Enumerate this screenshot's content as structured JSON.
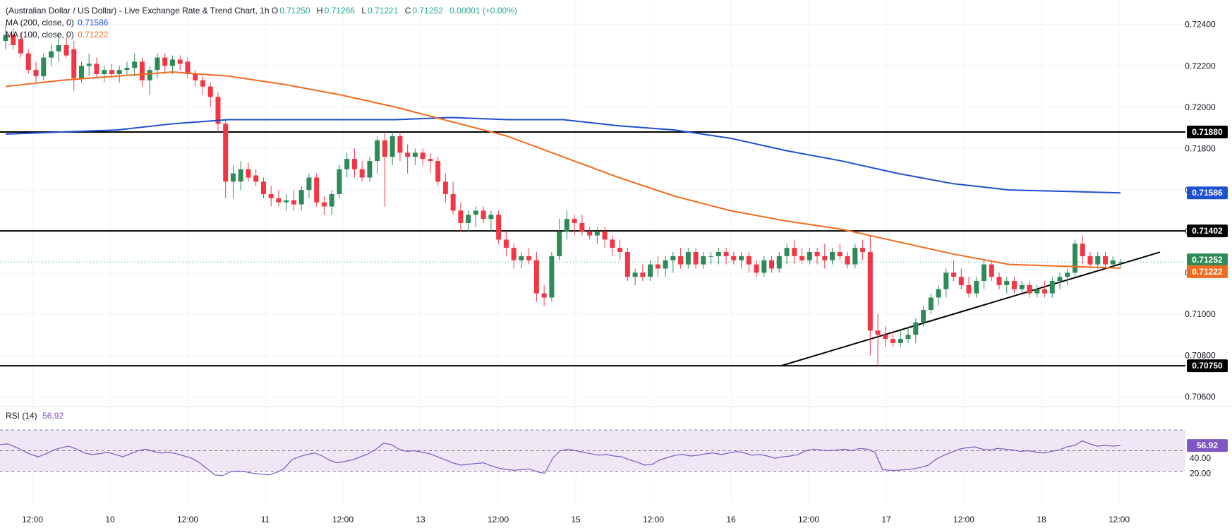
{
  "header": {
    "title": "(Australian Dollar / US Dollar) - Live Exchange Rate & Trend Chart, 1h",
    "open_label": "O",
    "open": "0.71250",
    "high_label": "H",
    "high": "0.71266",
    "low_label": "L",
    "low": "0.71221",
    "close_label": "C",
    "close": "0.71252",
    "change": "0.00001 (+0.00%)",
    "ma200_label": "MA (200, close, 0)",
    "ma200_value": "0.71586",
    "ma100_label": "MA (100, close, 0)",
    "ma100_value": "0.71222"
  },
  "rsi": {
    "label": "RSI (14)",
    "value": "56.92",
    "ticks": [
      "60.00",
      "40.00",
      "20.00"
    ]
  },
  "colors": {
    "up": "#26a69a",
    "up_body": "#2e8b57",
    "down": "#f23645",
    "ma200": "#1e4fd0",
    "ma100": "#f26b1d",
    "rsi": "#7e57c2",
    "rsi_band": "#ede7f6",
    "line": "#000000",
    "grid": "#f0f3fa"
  },
  "price_levels": [
    {
      "label": "0.71880",
      "value": 0.7188
    },
    {
      "label": "0.71402",
      "value": 0.71402
    },
    {
      "label": "0.70750",
      "value": 0.7075
    }
  ],
  "last_price_tag": "0.71252",
  "ma100_tag": "0.71222",
  "ma200_tag": "0.71586",
  "chart_data": {
    "type": "candlestick",
    "title": "(Australian Dollar / US Dollar) - Live Exchange Rate & Trend Chart, 1h",
    "yaxis": {
      "ticks": [
        "0.72400",
        "0.72200",
        "0.72000",
        "0.71800",
        "0.71600",
        "0.71400",
        "0.71200",
        "0.71000",
        "0.70800",
        "0.70600"
      ],
      "range": [
        0.7058,
        0.7245
      ]
    },
    "xaxis": {
      "ticks": [
        "12:00",
        "10",
        "12:00",
        "11",
        "12:00",
        "13",
        "12:00",
        "15",
        "12:00",
        "16",
        "12:00",
        "17",
        "12:00",
        "18",
        "12:00"
      ]
    },
    "candles_ohlc": [
      [
        0.7232,
        0.724,
        0.7228,
        0.7235
      ],
      [
        0.7235,
        0.7238,
        0.7228,
        0.723
      ],
      [
        0.7233,
        0.7236,
        0.7224,
        0.7226
      ],
      [
        0.7226,
        0.7228,
        0.7216,
        0.7218
      ],
      [
        0.7218,
        0.7222,
        0.7212,
        0.7215
      ],
      [
        0.7215,
        0.7226,
        0.7213,
        0.7224
      ],
      [
        0.7224,
        0.723,
        0.722,
        0.7227
      ],
      [
        0.7227,
        0.7235,
        0.7222,
        0.723
      ],
      [
        0.723,
        0.7234,
        0.7224,
        0.7225
      ],
      [
        0.7228,
        0.7232,
        0.7208,
        0.7214
      ],
      [
        0.7214,
        0.7222,
        0.7212,
        0.722
      ],
      [
        0.722,
        0.7226,
        0.7215,
        0.7221
      ],
      [
        0.7221,
        0.7224,
        0.7214,
        0.7216
      ],
      [
        0.7216,
        0.722,
        0.7212,
        0.7218
      ],
      [
        0.7218,
        0.7221,
        0.7214,
        0.7216
      ],
      [
        0.7216,
        0.722,
        0.7212,
        0.7218
      ],
      [
        0.7218,
        0.7222,
        0.7215,
        0.7219
      ],
      [
        0.7219,
        0.7226,
        0.7215,
        0.7222
      ],
      [
        0.7222,
        0.7224,
        0.721,
        0.7213
      ],
      [
        0.7213,
        0.722,
        0.7206,
        0.7218
      ],
      [
        0.7218,
        0.7226,
        0.7214,
        0.7224
      ],
      [
        0.7224,
        0.7226,
        0.7216,
        0.722
      ],
      [
        0.722,
        0.7225,
        0.7216,
        0.7223
      ],
      [
        0.7223,
        0.7225,
        0.7218,
        0.7221
      ],
      [
        0.7222,
        0.7224,
        0.7214,
        0.7216
      ],
      [
        0.7216,
        0.7218,
        0.721,
        0.7213
      ],
      [
        0.7213,
        0.7215,
        0.7206,
        0.721
      ],
      [
        0.721,
        0.7212,
        0.72,
        0.7205
      ],
      [
        0.7205,
        0.7207,
        0.7188,
        0.7192
      ],
      [
        0.7192,
        0.7194,
        0.7156,
        0.7164
      ],
      [
        0.7164,
        0.7172,
        0.7156,
        0.7168
      ],
      [
        0.7164,
        0.7174,
        0.716,
        0.717
      ],
      [
        0.717,
        0.7173,
        0.7164,
        0.7166
      ],
      [
        0.7167,
        0.717,
        0.7162,
        0.7164
      ],
      [
        0.7164,
        0.7166,
        0.7156,
        0.7158
      ],
      [
        0.7158,
        0.7162,
        0.7152,
        0.7156
      ],
      [
        0.7156,
        0.716,
        0.7152,
        0.7154
      ],
      [
        0.7154,
        0.7158,
        0.715,
        0.7155
      ],
      [
        0.7155,
        0.716,
        0.715,
        0.7153
      ],
      [
        0.7153,
        0.7162,
        0.715,
        0.716
      ],
      [
        0.716,
        0.7168,
        0.7156,
        0.7166
      ],
      [
        0.7166,
        0.7168,
        0.7152,
        0.7154
      ],
      [
        0.7154,
        0.7157,
        0.7148,
        0.7152
      ],
      [
        0.7152,
        0.716,
        0.7148,
        0.7158
      ],
      [
        0.7158,
        0.7172,
        0.7156,
        0.717
      ],
      [
        0.717,
        0.7178,
        0.7166,
        0.7175
      ],
      [
        0.7175,
        0.718,
        0.7166,
        0.717
      ],
      [
        0.717,
        0.7174,
        0.7164,
        0.7166
      ],
      [
        0.7166,
        0.7176,
        0.7164,
        0.7174
      ],
      [
        0.7174,
        0.7186,
        0.7168,
        0.7184
      ],
      [
        0.7184,
        0.7188,
        0.7152,
        0.7176
      ],
      [
        0.7176,
        0.7188,
        0.7172,
        0.7186
      ],
      [
        0.7186,
        0.7188,
        0.7174,
        0.7178
      ],
      [
        0.7178,
        0.7182,
        0.7168,
        0.7176
      ],
      [
        0.7176,
        0.718,
        0.7172,
        0.7178
      ],
      [
        0.7178,
        0.718,
        0.7172,
        0.7175
      ],
      [
        0.7175,
        0.7178,
        0.7168,
        0.7174
      ],
      [
        0.7174,
        0.7176,
        0.7162,
        0.7164
      ],
      [
        0.7164,
        0.7168,
        0.7154,
        0.7158
      ],
      [
        0.7158,
        0.7164,
        0.7148,
        0.715
      ],
      [
        0.715,
        0.7154,
        0.714,
        0.7144
      ],
      [
        0.7144,
        0.715,
        0.714,
        0.7148
      ],
      [
        0.7148,
        0.7152,
        0.7142,
        0.715
      ],
      [
        0.715,
        0.7152,
        0.7144,
        0.7146
      ],
      [
        0.7146,
        0.715,
        0.714,
        0.7148
      ],
      [
        0.7148,
        0.715,
        0.7134,
        0.7136
      ],
      [
        0.7136,
        0.714,
        0.7128,
        0.7132
      ],
      [
        0.7132,
        0.7134,
        0.7122,
        0.7126
      ],
      [
        0.7126,
        0.713,
        0.7122,
        0.7128
      ],
      [
        0.7128,
        0.7132,
        0.7124,
        0.7126
      ],
      [
        0.7126,
        0.713,
        0.7106,
        0.711
      ],
      [
        0.711,
        0.7114,
        0.7104,
        0.7108
      ],
      [
        0.7108,
        0.713,
        0.7106,
        0.7128
      ],
      [
        0.7128,
        0.7146,
        0.7126,
        0.714
      ],
      [
        0.714,
        0.715,
        0.7136,
        0.7146
      ],
      [
        0.7146,
        0.7148,
        0.7138,
        0.7144
      ],
      [
        0.7144,
        0.7148,
        0.7138,
        0.714
      ],
      [
        0.714,
        0.7142,
        0.7136,
        0.7138
      ],
      [
        0.7138,
        0.7142,
        0.7134,
        0.714
      ],
      [
        0.714,
        0.7142,
        0.7132,
        0.7136
      ],
      [
        0.7136,
        0.7138,
        0.7128,
        0.7132
      ],
      [
        0.7132,
        0.7136,
        0.7126,
        0.713
      ],
      [
        0.713,
        0.7132,
        0.7116,
        0.7118
      ],
      [
        0.7118,
        0.7122,
        0.7114,
        0.712
      ],
      [
        0.712,
        0.7124,
        0.7116,
        0.7118
      ],
      [
        0.7118,
        0.7126,
        0.7116,
        0.7124
      ],
      [
        0.7124,
        0.7128,
        0.7118,
        0.7122
      ],
      [
        0.7122,
        0.7128,
        0.7118,
        0.7126
      ],
      [
        0.7126,
        0.713,
        0.712,
        0.7128
      ],
      [
        0.7128,
        0.7132,
        0.7122,
        0.7124
      ],
      [
        0.7124,
        0.7132,
        0.7122,
        0.713
      ],
      [
        0.713,
        0.7132,
        0.7122,
        0.7124
      ],
      [
        0.7124,
        0.713,
        0.7122,
        0.7128
      ],
      [
        0.7128,
        0.713,
        0.7124,
        0.7128
      ],
      [
        0.7128,
        0.7132,
        0.7124,
        0.713
      ],
      [
        0.713,
        0.7132,
        0.7124,
        0.7128
      ],
      [
        0.7128,
        0.713,
        0.7124,
        0.7126
      ],
      [
        0.7126,
        0.713,
        0.7122,
        0.7128
      ],
      [
        0.7128,
        0.713,
        0.712,
        0.7124
      ],
      [
        0.7124,
        0.7126,
        0.7118,
        0.712
      ],
      [
        0.712,
        0.7128,
        0.7118,
        0.7126
      ],
      [
        0.7126,
        0.7128,
        0.712,
        0.7122
      ],
      [
        0.7122,
        0.713,
        0.712,
        0.7128
      ],
      [
        0.7128,
        0.7134,
        0.7124,
        0.7132
      ],
      [
        0.7132,
        0.7136,
        0.7124,
        0.7128
      ],
      [
        0.7128,
        0.7132,
        0.7124,
        0.7126
      ],
      [
        0.7126,
        0.7132,
        0.7124,
        0.713
      ],
      [
        0.713,
        0.7132,
        0.7124,
        0.7128
      ],
      [
        0.7128,
        0.7134,
        0.7122,
        0.7126
      ],
      [
        0.7126,
        0.7132,
        0.7124,
        0.713
      ],
      [
        0.713,
        0.7134,
        0.7126,
        0.7128
      ],
      [
        0.7128,
        0.713,
        0.7122,
        0.7124
      ],
      [
        0.7124,
        0.7134,
        0.7122,
        0.7132
      ],
      [
        0.7132,
        0.7136,
        0.7126,
        0.713
      ],
      [
        0.713,
        0.7138,
        0.708,
        0.7092
      ],
      [
        0.7092,
        0.71,
        0.7075,
        0.709
      ],
      [
        0.709,
        0.7094,
        0.7084,
        0.7088
      ],
      [
        0.7088,
        0.7092,
        0.7084,
        0.7086
      ],
      [
        0.7086,
        0.7092,
        0.7084,
        0.7088
      ],
      [
        0.7088,
        0.7094,
        0.7086,
        0.709
      ],
      [
        0.709,
        0.7098,
        0.7086,
        0.7096
      ],
      [
        0.7096,
        0.7104,
        0.7094,
        0.7102
      ],
      [
        0.7102,
        0.711,
        0.71,
        0.7108
      ],
      [
        0.7108,
        0.7114,
        0.7104,
        0.7112
      ],
      [
        0.7112,
        0.7122,
        0.7108,
        0.712
      ],
      [
        0.712,
        0.7126,
        0.7116,
        0.7118
      ],
      [
        0.7118,
        0.7122,
        0.7112,
        0.7114
      ],
      [
        0.7114,
        0.7118,
        0.7108,
        0.711
      ],
      [
        0.711,
        0.7118,
        0.7108,
        0.7116
      ],
      [
        0.7116,
        0.7126,
        0.7112,
        0.7124
      ],
      [
        0.7124,
        0.7126,
        0.7116,
        0.7118
      ],
      [
        0.7118,
        0.712,
        0.7112,
        0.7114
      ],
      [
        0.7114,
        0.7118,
        0.711,
        0.7116
      ],
      [
        0.7116,
        0.7118,
        0.711,
        0.7112
      ],
      [
        0.7112,
        0.7116,
        0.711,
        0.7114
      ],
      [
        0.7114,
        0.7116,
        0.7108,
        0.711
      ],
      [
        0.711,
        0.7114,
        0.7108,
        0.7112
      ],
      [
        0.7112,
        0.7116,
        0.7108,
        0.711
      ],
      [
        0.711,
        0.7118,
        0.7108,
        0.7116
      ],
      [
        0.7116,
        0.712,
        0.7112,
        0.7118
      ],
      [
        0.7118,
        0.7122,
        0.7114,
        0.712
      ],
      [
        0.712,
        0.7136,
        0.7118,
        0.7134
      ],
      [
        0.7134,
        0.7138,
        0.7124,
        0.7128
      ],
      [
        0.7128,
        0.713,
        0.7122,
        0.7124
      ],
      [
        0.7124,
        0.713,
        0.7122,
        0.7128
      ],
      [
        0.7128,
        0.713,
        0.7122,
        0.7124
      ],
      [
        0.7124,
        0.7128,
        0.7122,
        0.7126
      ],
      [
        0.7125,
        0.71266,
        0.71221,
        0.71252
      ]
    ],
    "ma200": {
      "name": "MA (200, close, 0)",
      "last": 0.71586,
      "values": [
        [
          0,
          0.7187
        ],
        [
          0.05,
          0.7188
        ],
        [
          0.1,
          0.7189
        ],
        [
          0.15,
          0.7192
        ],
        [
          0.2,
          0.7194
        ],
        [
          0.25,
          0.7194
        ],
        [
          0.3,
          0.7194
        ],
        [
          0.35,
          0.7194
        ],
        [
          0.4,
          0.7195
        ],
        [
          0.45,
          0.7194
        ],
        [
          0.5,
          0.7194
        ],
        [
          0.55,
          0.7191
        ],
        [
          0.6,
          0.7189
        ],
        [
          0.65,
          0.7185
        ],
        [
          0.7,
          0.7179
        ],
        [
          0.75,
          0.7174
        ],
        [
          0.8,
          0.7168
        ],
        [
          0.85,
          0.7163
        ],
        [
          0.9,
          0.716
        ],
        [
          1.0,
          0.71586
        ]
      ]
    },
    "ma100": {
      "name": "MA (100, close, 0)",
      "last": 0.71222,
      "values": [
        [
          0,
          0.721
        ],
        [
          0.05,
          0.7213
        ],
        [
          0.1,
          0.7215
        ],
        [
          0.15,
          0.7217
        ],
        [
          0.2,
          0.7215
        ],
        [
          0.25,
          0.7211
        ],
        [
          0.3,
          0.7206
        ],
        [
          0.35,
          0.72
        ],
        [
          0.4,
          0.7193
        ],
        [
          0.45,
          0.7186
        ],
        [
          0.5,
          0.7176
        ],
        [
          0.55,
          0.7166
        ],
        [
          0.6,
          0.7157
        ],
        [
          0.65,
          0.715
        ],
        [
          0.7,
          0.7145
        ],
        [
          0.75,
          0.7141
        ],
        [
          0.8,
          0.7135
        ],
        [
          0.85,
          0.7129
        ],
        [
          0.9,
          0.7124
        ],
        [
          1.0,
          0.71222
        ]
      ]
    },
    "trendline": {
      "from": [
        0.7075,
        0.7075
      ],
      "to_value": 0.71272
    },
    "rsi_values": [
      58,
      59,
      55,
      50,
      45,
      42,
      46,
      51,
      54,
      56,
      52,
      47,
      45,
      46,
      48,
      45,
      42,
      46,
      50,
      52,
      49,
      47,
      48,
      46,
      43,
      40,
      34,
      26,
      18,
      17,
      22,
      23,
      22,
      20,
      19,
      18,
      21,
      26,
      38,
      42,
      45,
      47,
      43,
      37,
      34,
      36,
      38,
      42,
      46,
      52,
      60,
      58,
      52,
      49,
      50,
      48,
      46,
      42,
      38,
      34,
      31,
      32,
      33,
      34,
      30,
      27,
      25,
      24,
      25,
      26,
      22,
      20,
      40,
      50,
      52,
      50,
      48,
      46,
      44,
      45,
      43,
      42,
      38,
      35,
      31,
      32,
      38,
      41,
      44,
      45,
      43,
      44,
      46,
      47,
      45,
      47,
      49,
      47,
      44,
      45,
      43,
      40,
      42,
      43,
      45,
      50,
      52,
      51,
      50,
      51,
      52,
      50,
      53,
      52,
      48,
      25,
      24,
      24,
      25,
      26,
      28,
      31,
      39,
      44,
      48,
      52,
      54,
      55,
      52,
      51,
      53,
      52,
      51,
      49,
      50,
      48,
      47,
      49,
      51,
      55,
      57,
      63,
      59,
      56,
      57,
      56,
      56.92
    ],
    "rsi_band": [
      30,
      70
    ]
  }
}
